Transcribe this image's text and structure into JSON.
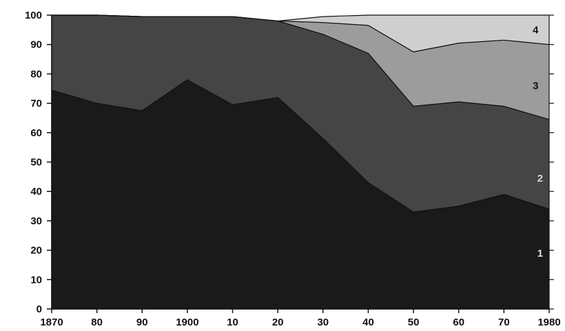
{
  "chart_data": {
    "type": "area",
    "stacked": true,
    "x": [
      1870,
      1880,
      1890,
      1900,
      1910,
      1920,
      1930,
      1940,
      1950,
      1960,
      1970,
      1980
    ],
    "x_tick_labels": [
      "1870",
      "80",
      "90",
      "1900",
      "10",
      "20",
      "30",
      "40",
      "50",
      "60",
      "70",
      "1980"
    ],
    "y_ticks": [
      0,
      10,
      20,
      30,
      40,
      50,
      60,
      70,
      80,
      90,
      100
    ],
    "ylim": [
      0,
      100
    ],
    "xlim": [
      1870,
      1980
    ],
    "grid": false,
    "series": [
      {
        "name": "1",
        "color": "#1a1a1a",
        "label_color": "#e0e0e0",
        "label_at": [
          1978,
          19
        ],
        "values": [
          74.5,
          70,
          67.5,
          78,
          69.5,
          72,
          58,
          43,
          33,
          35,
          39,
          34
        ]
      },
      {
        "name": "2",
        "color": "#454545",
        "label_color": "#d8d8d8",
        "label_at": [
          1978,
          44.5
        ],
        "values": [
          25.5,
          30,
          32,
          21.5,
          30,
          26,
          35.5,
          44,
          36,
          35.5,
          30,
          30.5
        ]
      },
      {
        "name": "3",
        "color": "#9c9c9c",
        "label_color": "#111111",
        "label_at": [
          1977,
          76
        ],
        "values": [
          0,
          0,
          0,
          0,
          0,
          0,
          4,
          9.5,
          18.5,
          20,
          22.5,
          25.5
        ]
      },
      {
        "name": "4",
        "color": "#cfcfcf",
        "label_color": "#111111",
        "label_at": [
          1977,
          95
        ],
        "values": [
          0,
          0,
          0,
          0,
          0,
          0,
          2,
          3.5,
          12.5,
          9.5,
          8.5,
          10
        ]
      }
    ]
  }
}
